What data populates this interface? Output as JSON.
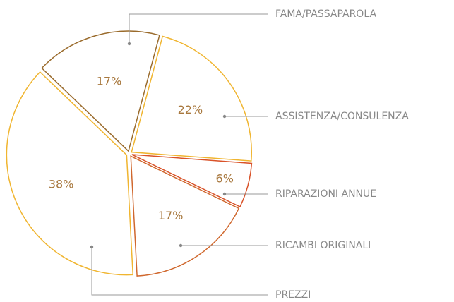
{
  "chart_data": {
    "type": "pie",
    "categories": [
      "FAMA/PASSAPAROLA",
      "ASSISTENZA/CONSULENZA",
      "RIPARAZIONI ANNUE",
      "RICAMBI ORIGINALI",
      "PREZZI"
    ],
    "values": [
      17,
      22,
      6,
      17,
      38
    ],
    "value_labels": [
      "17%",
      "22%",
      "6%",
      "17%",
      "38%"
    ],
    "colors": [
      "#9a6b2c",
      "#f0b530",
      "#d9532a",
      "#d0682e",
      "#f0b530"
    ]
  }
}
